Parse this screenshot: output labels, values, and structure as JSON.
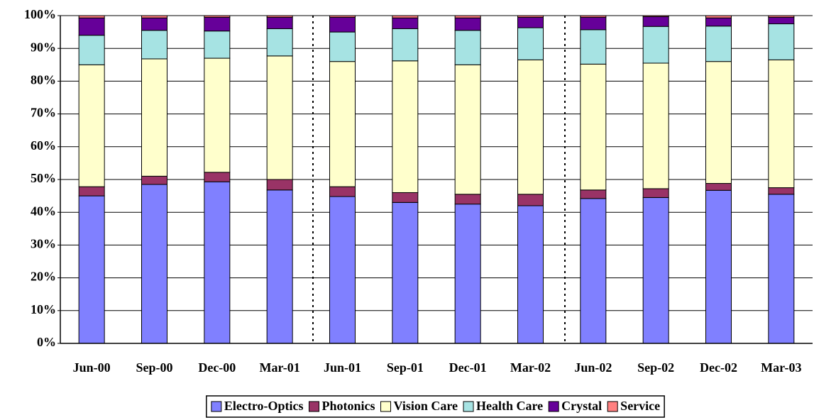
{
  "chart_data": {
    "type": "stacked_bar",
    "categories": [
      "Jun-00",
      "Sep-00",
      "Dec-00",
      "Mar-01",
      "Jun-01",
      "Sep-01",
      "Dec-01",
      "Mar-02",
      "Jun-02",
      "Sep-02",
      "Dec-02",
      "Mar-03"
    ],
    "series": [
      {
        "name": "Electro-Optics",
        "color": "#8080ff",
        "values": [
          45,
          48.5,
          49.3,
          46.8,
          44.8,
          43,
          42.5,
          42,
          44.2,
          44.5,
          46.7,
          45.5
        ]
      },
      {
        "name": "Photonics",
        "color": "#993366",
        "values": [
          2.8,
          2.5,
          2.9,
          3.2,
          3,
          3,
          3,
          3.5,
          2.6,
          2.7,
          2.1,
          2
        ]
      },
      {
        "name": "Vision Care",
        "color": "#ffffcc",
        "values": [
          37.2,
          35.8,
          34.8,
          37.7,
          38.2,
          40.2,
          39.5,
          41,
          38.4,
          38.3,
          37.2,
          39
        ]
      },
      {
        "name": "Health Care",
        "color": "#a6e3e3",
        "values": [
          9,
          8.7,
          8.3,
          8.3,
          9,
          9.8,
          10.5,
          9.8,
          10.5,
          11.2,
          10.8,
          11
        ]
      },
      {
        "name": "Crystal",
        "color": "#660099",
        "values": [
          5.3,
          3.8,
          4.2,
          3.5,
          4.5,
          3.3,
          3.8,
          3.2,
          3.8,
          3,
          2.5,
          2
        ]
      },
      {
        "name": "Service",
        "color": "#ff8080",
        "values": [
          0.7,
          0.7,
          0.5,
          0.5,
          0.5,
          0.7,
          0.7,
          0.5,
          0.5,
          0.3,
          0.7,
          0.5
        ]
      }
    ],
    "ylim": [
      0,
      100
    ],
    "yticks": [
      {
        "value": 0,
        "label": "0%"
      },
      {
        "value": 10,
        "label": "10%"
      },
      {
        "value": 20,
        "label": "20%"
      },
      {
        "value": 30,
        "label": "30%"
      },
      {
        "value": 40,
        "label": "40%"
      },
      {
        "value": 50,
        "label": "50%"
      },
      {
        "value": 60,
        "label": "60%"
      },
      {
        "value": 70,
        "label": "70%"
      },
      {
        "value": 80,
        "label": "80%"
      },
      {
        "value": 90,
        "label": "90%"
      },
      {
        "value": 100,
        "label": "100%"
      }
    ],
    "grid": true,
    "legend": "bottom"
  }
}
